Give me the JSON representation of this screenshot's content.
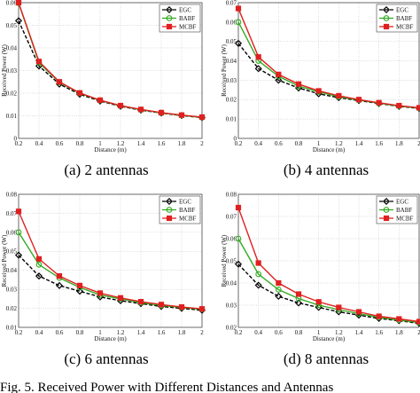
{
  "figure_caption": "Fig. 5.   Received Power with Different Distances and Antennas",
  "chart_data": [
    {
      "type": "line",
      "caption": "(a)  2 antennas",
      "xlabel": "Distance (m)",
      "ylabel": "Received Power (W)",
      "x": [
        0.2,
        0.4,
        0.6,
        0.8,
        1.0,
        1.2,
        1.4,
        1.6,
        1.8,
        2.0
      ],
      "xticks": [
        "0.2",
        "0.4",
        "0.6",
        "0.8",
        "1",
        "1.2",
        "1.4",
        "1.6",
        "1.8",
        "2"
      ],
      "xlim": [
        0.2,
        2.0
      ],
      "ylim": [
        0,
        0.06
      ],
      "yticks": [
        "0",
        "0.01",
        "0.02",
        "0.03",
        "0.04",
        "0.05",
        "0.06"
      ],
      "legend_position": "top-right",
      "series": [
        {
          "name": "EGC",
          "color": "#000000",
          "dash": "4,2",
          "marker": "diamond",
          "values": [
            0.052,
            0.032,
            0.024,
            0.0195,
            0.0165,
            0.0142,
            0.0125,
            0.0112,
            0.0101,
            0.0092
          ]
        },
        {
          "name": "BABF",
          "color": "#33aa22",
          "dash": "",
          "marker": "circle",
          "values": [
            0.0598,
            0.0335,
            0.0248,
            0.02,
            0.0168,
            0.0144,
            0.0127,
            0.0113,
            0.0102,
            0.0093
          ]
        },
        {
          "name": "MCBF",
          "color": "#e02020",
          "dash": "",
          "marker": "square",
          "values": [
            0.06,
            0.034,
            0.025,
            0.0201,
            0.0169,
            0.0145,
            0.0128,
            0.0114,
            0.0103,
            0.0094
          ]
        }
      ]
    },
    {
      "type": "line",
      "caption": "(b)  4 antennas",
      "xlabel": "Distance (m)",
      "ylabel": "Received Power (W)",
      "x": [
        0.2,
        0.4,
        0.6,
        0.8,
        1.0,
        1.2,
        1.4,
        1.6,
        1.8,
        2.0
      ],
      "xticks": [
        "0.2",
        "0.4",
        "0.6",
        "0.8",
        "1",
        "1.2",
        "1.4",
        "1.6",
        "1.8",
        "2"
      ],
      "xlim": [
        0.2,
        2.0
      ],
      "ylim": [
        0,
        0.07
      ],
      "yticks": [
        "0",
        "0.01",
        "0.02",
        "0.03",
        "0.04",
        "0.05",
        "0.06",
        "0.07"
      ],
      "legend_position": "top-right",
      "series": [
        {
          "name": "EGC",
          "color": "#000000",
          "dash": "4,2",
          "marker": "diamond",
          "values": [
            0.049,
            0.036,
            0.03,
            0.026,
            0.023,
            0.021,
            0.0195,
            0.018,
            0.0165,
            0.0155
          ]
        },
        {
          "name": "BABF",
          "color": "#33aa22",
          "dash": "",
          "marker": "circle",
          "values": [
            0.06,
            0.04,
            0.032,
            0.027,
            0.024,
            0.0215,
            0.0198,
            0.0182,
            0.0167,
            0.0157
          ]
        },
        {
          "name": "MCBF",
          "color": "#e02020",
          "dash": "",
          "marker": "square",
          "values": [
            0.067,
            0.042,
            0.033,
            0.028,
            0.0245,
            0.022,
            0.02,
            0.0184,
            0.0169,
            0.0158
          ]
        }
      ]
    },
    {
      "type": "line",
      "caption": "(c)  6 antennas",
      "xlabel": "Distance (m)",
      "ylabel": "Received Power (W)",
      "x": [
        0.2,
        0.4,
        0.6,
        0.8,
        1.0,
        1.2,
        1.4,
        1.6,
        1.8,
        2.0
      ],
      "xticks": [
        "0.2",
        "0.4",
        "0.6",
        "0.8",
        "1",
        "1.2",
        "1.4",
        "1.6",
        "1.8",
        "2"
      ],
      "xlim": [
        0.2,
        2.0
      ],
      "ylim": [
        0.01,
        0.08
      ],
      "yticks": [
        "0.01",
        "0.02",
        "0.03",
        "0.04",
        "0.05",
        "0.06",
        "0.07",
        "0.08"
      ],
      "legend_position": "top-right",
      "series": [
        {
          "name": "EGC",
          "color": "#000000",
          "dash": "4,2",
          "marker": "diamond",
          "values": [
            0.048,
            0.037,
            0.032,
            0.029,
            0.026,
            0.024,
            0.0225,
            0.021,
            0.02,
            0.019
          ]
        },
        {
          "name": "BABF",
          "color": "#33aa22",
          "dash": "",
          "marker": "circle",
          "values": [
            0.06,
            0.043,
            0.036,
            0.031,
            0.027,
            0.025,
            0.023,
            0.0215,
            0.0205,
            0.0195
          ]
        },
        {
          "name": "MCBF",
          "color": "#e02020",
          "dash": "",
          "marker": "square",
          "values": [
            0.071,
            0.046,
            0.037,
            0.032,
            0.028,
            0.0255,
            0.0235,
            0.022,
            0.0207,
            0.0197
          ]
        }
      ]
    },
    {
      "type": "line",
      "caption": "(d)  8 antennas",
      "xlabel": "Distance (m)",
      "ylabel": "Received Power (W)",
      "x": [
        0.2,
        0.4,
        0.6,
        0.8,
        1.0,
        1.2,
        1.4,
        1.6,
        1.8,
        2.0
      ],
      "xticks": [
        "0.2",
        "0.4",
        "0.6",
        "0.8",
        "1",
        "1.2",
        "1.4",
        "1.6",
        "1.8",
        "2"
      ],
      "xlim": [
        0.2,
        2.0
      ],
      "ylim": [
        0.02,
        0.08
      ],
      "yticks": [
        "0.02",
        "0.03",
        "0.04",
        "0.05",
        "0.06",
        "0.07",
        "0.08"
      ],
      "legend_position": "top-right",
      "series": [
        {
          "name": "EGC",
          "color": "#000000",
          "dash": "4,2",
          "marker": "diamond",
          "values": [
            0.0485,
            0.039,
            0.034,
            0.031,
            0.029,
            0.027,
            0.0255,
            0.024,
            0.023,
            0.0218
          ]
        },
        {
          "name": "BABF",
          "color": "#33aa22",
          "dash": "",
          "marker": "circle",
          "values": [
            0.06,
            0.044,
            0.037,
            0.033,
            0.03,
            0.028,
            0.0262,
            0.0245,
            0.0233,
            0.0222
          ]
        },
        {
          "name": "MCBF",
          "color": "#e02020",
          "dash": "",
          "marker": "square",
          "values": [
            0.074,
            0.049,
            0.04,
            0.035,
            0.0315,
            0.029,
            0.027,
            0.025,
            0.0238,
            0.0226
          ]
        }
      ]
    }
  ]
}
